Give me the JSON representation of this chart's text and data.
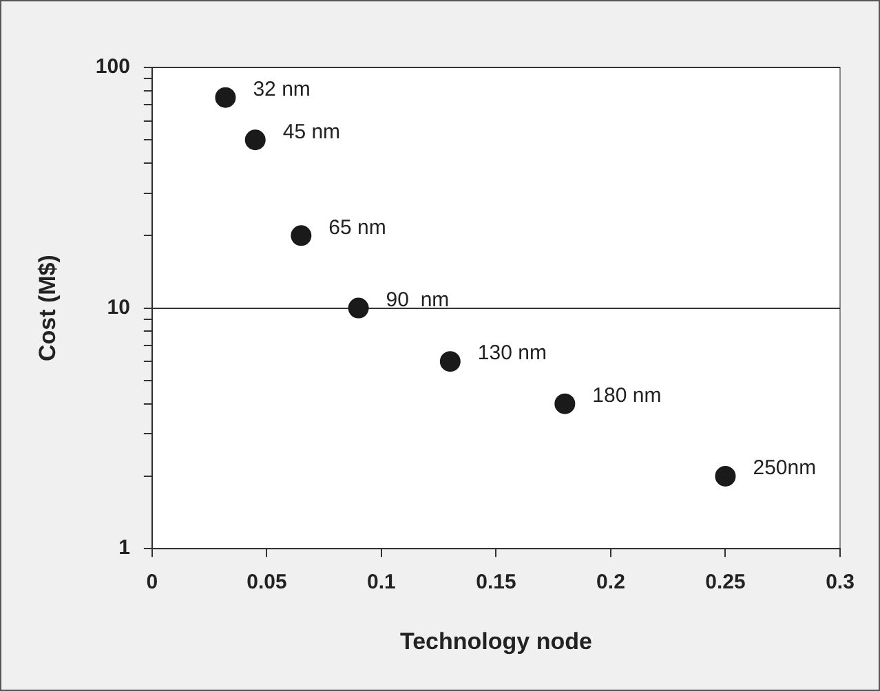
{
  "chart_data": {
    "type": "scatter",
    "xlabel": "Technology node",
    "ylabel": "Cost (M$)",
    "x": [
      0.032,
      0.045,
      0.065,
      0.09,
      0.13,
      0.18,
      0.25
    ],
    "series": [
      {
        "color": "#1a1a1a",
        "values": [
          75,
          50,
          20,
          10,
          6,
          4,
          2
        ]
      }
    ],
    "xlim": [
      0,
      0.3
    ],
    "xticks": [
      0,
      0.05,
      0.1,
      0.15,
      0.2,
      0.25,
      0.3
    ],
    "ylim": [
      1,
      100
    ],
    "yticks": [
      1,
      {
        "value": 2,
        "label": null
      },
      {
        "value": 3,
        "label": null
      },
      {
        "value": 4,
        "label": null
      },
      {
        "value": 5,
        "label": null
      },
      {
        "value": 6,
        "label": null
      },
      {
        "value": 7,
        "label": null
      },
      {
        "value": 8,
        "label": null
      },
      {
        "value": 9,
        "label": null
      },
      10,
      {
        "value": 20,
        "label": null
      },
      {
        "value": 30,
        "label": null
      },
      {
        "value": 40,
        "label": null
      },
      {
        "value": 50,
        "label": null
      },
      {
        "value": 60,
        "label": null
      },
      {
        "value": 70,
        "label": null
      },
      {
        "value": 80,
        "label": null
      },
      {
        "value": 90,
        "label": null
      },
      100
    ],
    "log": "y",
    "grid": "y",
    "legend": false,
    "marker": "circle",
    "annotations": [
      {
        "text": "32 nm",
        "x": 0.032,
        "y": 75
      },
      {
        "text": "45 nm",
        "x": 0.045,
        "y": 50
      },
      {
        "text": "65 nm",
        "x": 0.065,
        "y": 20
      },
      {
        "text": "90  nm",
        "x": 0.09,
        "y": 10
      },
      {
        "text": "130 nm",
        "x": 0.13,
        "y": 6
      },
      {
        "text": "180 nm",
        "x": 0.18,
        "y": 4
      },
      {
        "text": "250nm",
        "x": 0.25,
        "y": 2
      }
    ]
  }
}
